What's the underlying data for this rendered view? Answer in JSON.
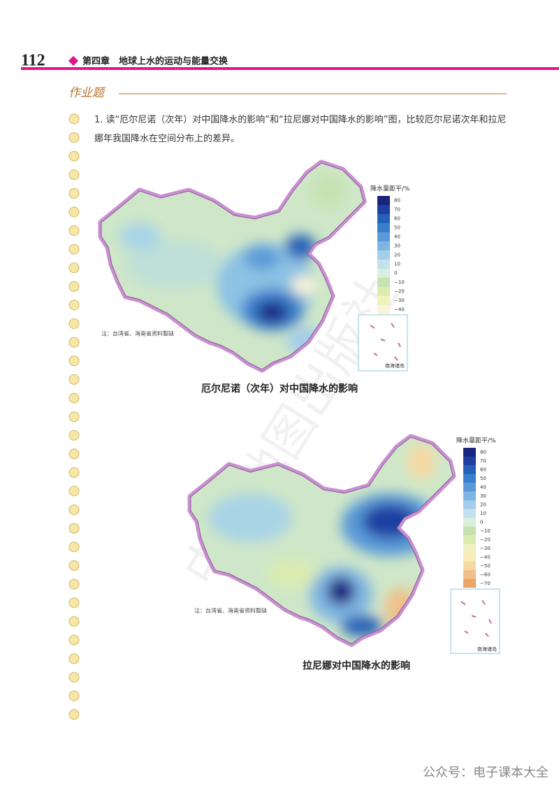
{
  "header": {
    "page_number": "112",
    "chapter": "第四章　地球上水的运动与能量交换"
  },
  "section": {
    "title": "作业题",
    "questions": [
      {
        "text": "1. 读“厄尔尼诺（次年）对中国降水的影响”和“拉尼娜对中国降水的影响”图，比较厄尔尼诺次年和拉尼娜年我国降水在空间分布上的差异。"
      }
    ]
  },
  "maps": [
    {
      "legend": {
        "title": "降水量距平/%",
        "items": [
          {
            "label": "80",
            "color": "#1a237e"
          },
          {
            "label": "70",
            "color": "#1f3fa0"
          },
          {
            "label": "60",
            "color": "#2561b8"
          },
          {
            "label": "50",
            "color": "#3a7fcc"
          },
          {
            "label": "40",
            "color": "#5a9ad8"
          },
          {
            "label": "30",
            "color": "#7fb5e2"
          },
          {
            "label": "20",
            "color": "#a3cdea"
          },
          {
            "label": "10",
            "color": "#c3e2ef"
          },
          {
            "label": "0",
            "color": "#d9eedd"
          },
          {
            "label": "−10",
            "color": "#c6e2b0"
          },
          {
            "label": "−20",
            "color": "#dcecb0"
          },
          {
            "label": "−30",
            "color": "#eef2c0"
          },
          {
            "label": "−40",
            "color": "#fbf5d8"
          }
        ]
      },
      "note": "注：台湾省、海南省资料暂缺",
      "inset_label": "南海诸岛",
      "caption": "厄尔尼诺（次年）对中国降水的影响"
    },
    {
      "legend": {
        "title": "降水量距平/%",
        "items": [
          {
            "label": "80",
            "color": "#1a237e"
          },
          {
            "label": "70",
            "color": "#1f3fa0"
          },
          {
            "label": "60",
            "color": "#2561b8"
          },
          {
            "label": "50",
            "color": "#3a7fcc"
          },
          {
            "label": "40",
            "color": "#5a9ad8"
          },
          {
            "label": "30",
            "color": "#7fb5e2"
          },
          {
            "label": "20",
            "color": "#a3cdea"
          },
          {
            "label": "10",
            "color": "#c3e2ef"
          },
          {
            "label": "0",
            "color": "#d9eedd"
          },
          {
            "label": "−10",
            "color": "#c6e2b0"
          },
          {
            "label": "−20",
            "color": "#dcecb0"
          },
          {
            "label": "−30",
            "color": "#eef2c0"
          },
          {
            "label": "−40",
            "color": "#f8ecb8"
          },
          {
            "label": "−50",
            "color": "#f6d9a0"
          },
          {
            "label": "−60",
            "color": "#f1c088"
          },
          {
            "label": "−70",
            "color": "#eaa468"
          }
        ]
      },
      "note": "注：台湾省、海南省资料暂缺",
      "inset_label": "南海诸岛",
      "caption": "拉尼娜对中国降水的影响"
    }
  ],
  "watermark": "中国地图出版社",
  "footer": "公众号：电子课本大全"
}
